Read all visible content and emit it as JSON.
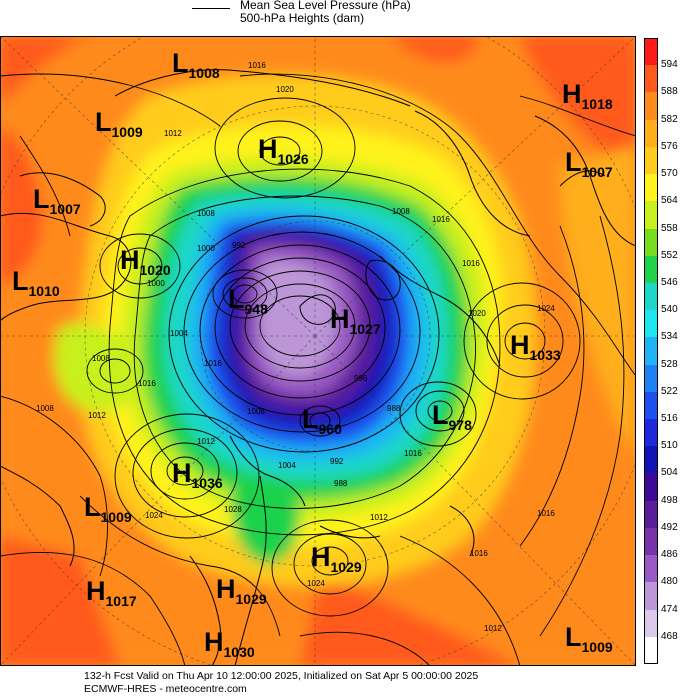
{
  "header": {
    "line1": "Mean Sea Level Pressure (hPa)",
    "line2": "500-hPa Heights (dam)"
  },
  "colors": {
    "background": "#ff8a1e",
    "land_outline": "#000000",
    "isobar": "#000000"
  },
  "colorbar": {
    "entries": [
      {
        "label": "594",
        "color": "#ff1a1a"
      },
      {
        "label": "588",
        "color": "#ff5a1e"
      },
      {
        "label": "582",
        "color": "#ff8a1e"
      },
      {
        "label": "576",
        "color": "#ffae1a"
      },
      {
        "label": "570",
        "color": "#ffcc1e"
      },
      {
        "label": "564",
        "color": "#fff21e"
      },
      {
        "label": "558",
        "color": "#c8f01e"
      },
      {
        "label": "552",
        "color": "#78dc1e"
      },
      {
        "label": "546",
        "color": "#1ed24b"
      },
      {
        "label": "540",
        "color": "#1ed7c8"
      },
      {
        "label": "534",
        "color": "#1ee6f0"
      },
      {
        "label": "528",
        "color": "#1eb4f5"
      },
      {
        "label": "522",
        "color": "#1e82f5"
      },
      {
        "label": "516",
        "color": "#1e50f0"
      },
      {
        "label": "510",
        "color": "#1e28dc"
      },
      {
        "label": "504",
        "color": "#1414b4"
      },
      {
        "label": "498",
        "color": "#3c0a96"
      },
      {
        "label": "492",
        "color": "#5a1e9b"
      },
      {
        "label": "486",
        "color": "#7832aa"
      },
      {
        "label": "480",
        "color": "#9a5ac3"
      },
      {
        "label": "474",
        "color": "#bc96d7"
      },
      {
        "label": "468",
        "color": "#dcc8eb"
      }
    ],
    "last_color": "#ffffff"
  },
  "pressure_centers": [
    {
      "type": "L",
      "value": "1008"
    },
    {
      "type": "L",
      "value": "1009"
    },
    {
      "type": "H",
      "value": "1026"
    },
    {
      "type": "H",
      "value": "1018"
    },
    {
      "type": "L",
      "value": "1007"
    },
    {
      "type": "L",
      "value": "1007"
    },
    {
      "type": "H",
      "value": "1020"
    },
    {
      "type": "L",
      "value": "1010"
    },
    {
      "type": "L",
      "value": "948"
    },
    {
      "type": "H",
      "value": "1027"
    },
    {
      "type": "H",
      "value": "1033"
    },
    {
      "type": "L",
      "value": "978"
    },
    {
      "type": "L",
      "value": "960"
    },
    {
      "type": "H",
      "value": "1036"
    },
    {
      "type": "L",
      "value": "1009"
    },
    {
      "type": "H",
      "value": "1029"
    },
    {
      "type": "H",
      "value": "1029"
    },
    {
      "type": "H",
      "value": "1017"
    },
    {
      "type": "H",
      "value": "1030"
    },
    {
      "type": "L",
      "value": "1009"
    }
  ],
  "isobar_labels": [
    "1016",
    "1020",
    "1012",
    "1008",
    "1016",
    "1000",
    "992",
    "1004",
    "996",
    "1008",
    "1016",
    "1008",
    "1020",
    "1024",
    "1012",
    "1008",
    "1016",
    "1012",
    "1016",
    "1008",
    "1004",
    "992",
    "988",
    "1016",
    "1012",
    "1024",
    "1028",
    "1024",
    "1016",
    "1016",
    "1012",
    "1000",
    "988"
  ],
  "footer": {
    "line1": "132-h Fcst Valid on Thu Apr 10 12:00:00 2025, Initialized on Sat Apr  5 00:00:00 2025",
    "line2": "ECMWF-HRES  - meteocentre.com"
  }
}
